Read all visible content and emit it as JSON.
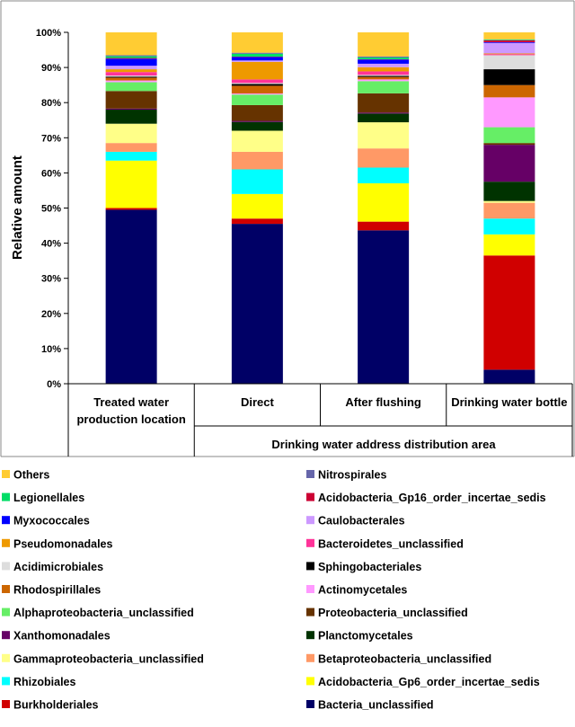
{
  "chart_data": {
    "type": "bar",
    "stacked": true,
    "ylabel": "Relative amount",
    "ylim": [
      0,
      100
    ],
    "yticks": [
      "0%",
      "10%",
      "20%",
      "30%",
      "40%",
      "50%",
      "60%",
      "70%",
      "80%",
      "90%",
      "100%"
    ],
    "categories": [
      [
        "Treated water",
        "production location"
      ],
      [
        "Direct"
      ],
      [
        "After flushing"
      ],
      [
        "Drinking water bottle"
      ]
    ],
    "group_label": "Drinking water address distribution area",
    "series": [
      {
        "name": "Bacteria_unclassified",
        "color": "#000066",
        "values": [
          49.5,
          45.5,
          44.0,
          4.0
        ]
      },
      {
        "name": "Burkholderiales",
        "color": "#d00000",
        "values": [
          0.5,
          1.5,
          2.5,
          32.5
        ]
      },
      {
        "name": "Acidobacteria_Gp6_order_incertae_sedis",
        "color": "#ffff00",
        "values": [
          13.5,
          7.0,
          11.0,
          6.0
        ]
      },
      {
        "name": "Rhizobiales",
        "color": "#00ffff",
        "values": [
          2.5,
          7.0,
          4.5,
          4.5
        ]
      },
      {
        "name": "Betaproteobacteria_unclassified",
        "color": "#ff9966",
        "values": [
          2.5,
          5.0,
          5.5,
          4.5
        ]
      },
      {
        "name": "Gammaproteobacteria_unclassified",
        "color": "#ffff88",
        "values": [
          5.5,
          6.0,
          7.5,
          0.5
        ]
      },
      {
        "name": "Planctomycetales",
        "color": "#003300",
        "values": [
          4.0,
          2.5,
          2.5,
          5.5
        ]
      },
      {
        "name": "Xanthomonadales",
        "color": "#660066",
        "values": [
          0.3,
          0.3,
          0.3,
          10.5
        ]
      },
      {
        "name": "Proteobacteria_unclassified",
        "color": "#663300",
        "values": [
          5.0,
          4.5,
          5.5,
          0.5
        ]
      },
      {
        "name": "Alphaproteobacteria_unclassified",
        "color": "#66ee66",
        "values": [
          2.5,
          3.0,
          3.5,
          4.5
        ]
      },
      {
        "name": "Actinomycetales",
        "color": "#ff99ff",
        "values": [
          0.5,
          0.3,
          0.5,
          8.5
        ]
      },
      {
        "name": "Rhodospirillales",
        "color": "#cc6600",
        "values": [
          0.8,
          2.2,
          0.7,
          3.5
        ]
      },
      {
        "name": "Sphingobacteriales",
        "color": "#000000",
        "values": [
          0.3,
          0.5,
          0.3,
          4.5
        ]
      },
      {
        "name": "Acidimicrobiales",
        "color": "#dddddd",
        "values": [
          0.3,
          0.3,
          0.3,
          4.0
        ]
      },
      {
        "name": "Bacteroidetes_unclassified",
        "color": "#ff3399",
        "values": [
          1.0,
          1.0,
          1.0,
          0.3
        ]
      },
      {
        "name": "Pseudomonadales",
        "color": "#ee9900",
        "values": [
          0.8,
          5.0,
          1.2,
          0.2
        ]
      },
      {
        "name": "Caulobacterales",
        "color": "#cc99ff",
        "values": [
          1.0,
          0.4,
          1.0,
          3.0
        ]
      },
      {
        "name": "Myxococcales",
        "color": "#0000ff",
        "values": [
          2.0,
          1.0,
          1.2,
          0.2
        ]
      },
      {
        "name": "Acidobacteria_Gp16_order_incertae_sedis",
        "color": "#cc0033",
        "values": [
          0.2,
          0.1,
          0.1,
          0.5
        ]
      },
      {
        "name": "Legionellales",
        "color": "#00dd66",
        "values": [
          0.5,
          0.8,
          0.5,
          0.2
        ]
      },
      {
        "name": "Nitrospirales",
        "color": "#6666aa",
        "values": [
          0.3,
          0.3,
          0.3,
          0.1
        ]
      },
      {
        "name": "Others",
        "color": "#ffcc33",
        "values": [
          6.5,
          5.8,
          6.9,
          2.0
        ]
      }
    ],
    "legend_order": [
      "Others",
      "Nitrospirales",
      "Legionellales",
      "Acidobacteria_Gp16_order_incertae_sedis",
      "Myxococcales",
      "Caulobacterales",
      "Pseudomonadales",
      "Bacteroidetes_unclassified",
      "Acidimicrobiales",
      "Sphingobacteriales",
      "Rhodospirillales",
      "Actinomycetales",
      "Alphaproteobacteria_unclassified",
      "Proteobacteria_unclassified",
      "Xanthomonadales",
      "Planctomycetales",
      "Gammaproteobacteria_unclassified",
      "Betaproteobacteria_unclassified",
      "Rhizobiales",
      "Acidobacteria_Gp6_order_incertae_sedis",
      "Burkholderiales",
      "Bacteria_unclassified"
    ],
    "legend_placement": "bottom",
    "grid": false
  }
}
